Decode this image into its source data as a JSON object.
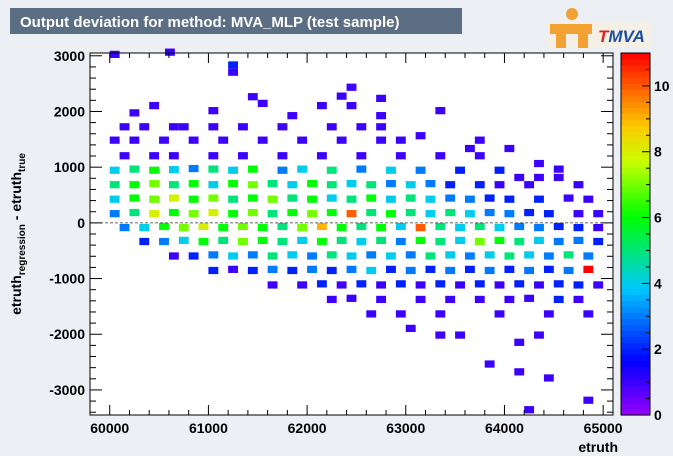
{
  "header": {
    "title": "Output deviation for method: MVA_MLP (test sample)",
    "logo_text": "MVA",
    "logo_prefix": "T"
  },
  "colors": {
    "canvas_bg": "#ecf0f5",
    "title_bar": "#5c6e84",
    "title_text": "#ffffff",
    "logo_bg": "#f5f0e6",
    "logo_orange": "#f2a233",
    "logo_text": "#1d4fa0",
    "logo_t": "#e0201b"
  },
  "chart_data": {
    "type": "heatmap",
    "title": "Output deviation for method: MVA_MLP (test sample)",
    "xlabel": "etruth",
    "ylabel": "etruth_regression - etruth_true",
    "ylabel_main": "etruth",
    "ylabel_sub1": "regression",
    "ylabel_mid": " - etruth",
    "ylabel_sub2": "true",
    "xlim": [
      59800,
      65100
    ],
    "ylim": [
      -3450,
      3050
    ],
    "x_ticks": [
      60000,
      61000,
      62000,
      63000,
      64000,
      65000
    ],
    "x_tick_labels": [
      "60000",
      "61000",
      "62000",
      "63000",
      "64000",
      "65000"
    ],
    "y_ticks": [
      3000,
      2000,
      1000,
      0,
      -1000,
      -2000,
      -3000
    ],
    "y_tick_labels": [
      "3000",
      "2000",
      "1000",
      "0",
      "-1000",
      "-2000",
      "-3000"
    ],
    "z_range": [
      0,
      11
    ],
    "z_ticks": [
      0,
      2,
      4,
      6,
      8,
      10
    ],
    "z_tick_labels": [
      "0",
      "2",
      "4",
      "6",
      "8",
      "10"
    ],
    "bin_width_x": 100,
    "bin_width_y": 130,
    "grid": false,
    "legend": "colorbar-right",
    "cells": [
      [
        60000,
        2960,
        1
      ],
      [
        60560,
        3000,
        1
      ],
      [
        61200,
        2770,
        2
      ],
      [
        61200,
        2640,
        1
      ],
      [
        62400,
        2370,
        1
      ],
      [
        61400,
        2200,
        1
      ],
      [
        62300,
        2210,
        1
      ],
      [
        62700,
        2170,
        1
      ],
      [
        60400,
        2040,
        1
      ],
      [
        61500,
        2080,
        1
      ],
      [
        62100,
        2040,
        1
      ],
      [
        62400,
        2040,
        1
      ],
      [
        60200,
        1910,
        1
      ],
      [
        61000,
        1950,
        1
      ],
      [
        61800,
        1860,
        1
      ],
      [
        62700,
        1860,
        1
      ],
      [
        63300,
        1950,
        1
      ],
      [
        60100,
        1660,
        1
      ],
      [
        60300,
        1660,
        1
      ],
      [
        60600,
        1660,
        1
      ],
      [
        60700,
        1660,
        1
      ],
      [
        61000,
        1660,
        1
      ],
      [
        61300,
        1660,
        1
      ],
      [
        61700,
        1660,
        1
      ],
      [
        62200,
        1660,
        1
      ],
      [
        62500,
        1660,
        1
      ],
      [
        62700,
        1660,
        1
      ],
      [
        63100,
        1500,
        1
      ],
      [
        63700,
        1420,
        1
      ],
      [
        63600,
        1270,
        1
      ],
      [
        64000,
        1270,
        1
      ],
      [
        60000,
        1420,
        1
      ],
      [
        60200,
        1420,
        1
      ],
      [
        60500,
        1420,
        1
      ],
      [
        60800,
        1420,
        1
      ],
      [
        61100,
        1420,
        1
      ],
      [
        61500,
        1420,
        1
      ],
      [
        61900,
        1420,
        1
      ],
      [
        62300,
        1420,
        1
      ],
      [
        62700,
        1420,
        1
      ],
      [
        62900,
        1420,
        1
      ],
      [
        60100,
        1140,
        1
      ],
      [
        60400,
        1140,
        1
      ],
      [
        60600,
        1140,
        1
      ],
      [
        61000,
        1140,
        1
      ],
      [
        61300,
        1140,
        1
      ],
      [
        61700,
        1140,
        1
      ],
      [
        62100,
        1140,
        1
      ],
      [
        62500,
        1140,
        1
      ],
      [
        62900,
        1140,
        1
      ],
      [
        63300,
        1140,
        1
      ],
      [
        63700,
        1140,
        1
      ],
      [
        64300,
        1000,
        1
      ],
      [
        64500,
        900,
        1
      ],
      [
        60000,
        880,
        4
      ],
      [
        60200,
        900,
        5
      ],
      [
        60400,
        880,
        6
      ],
      [
        60600,
        890,
        4
      ],
      [
        60800,
        910,
        3
      ],
      [
        61000,
        900,
        5
      ],
      [
        61200,
        880,
        4
      ],
      [
        61400,
        900,
        6
      ],
      [
        61700,
        880,
        3
      ],
      [
        61900,
        900,
        4
      ],
      [
        62200,
        880,
        5
      ],
      [
        62500,
        900,
        3
      ],
      [
        62800,
        880,
        4
      ],
      [
        63100,
        880,
        3
      ],
      [
        63500,
        880,
        2
      ],
      [
        63900,
        880,
        2
      ],
      [
        64100,
        750,
        1
      ],
      [
        64300,
        750,
        1
      ],
      [
        64500,
        750,
        1
      ],
      [
        64700,
        620,
        1
      ],
      [
        60000,
        620,
        5
      ],
      [
        60200,
        620,
        6
      ],
      [
        60400,
        640,
        7
      ],
      [
        60600,
        620,
        5
      ],
      [
        60800,
        640,
        6
      ],
      [
        61000,
        620,
        4
      ],
      [
        61200,
        640,
        6
      ],
      [
        61400,
        620,
        7
      ],
      [
        61600,
        640,
        5
      ],
      [
        61800,
        620,
        4
      ],
      [
        62000,
        640,
        6
      ],
      [
        62200,
        620,
        5
      ],
      [
        62400,
        640,
        4
      ],
      [
        62600,
        620,
        5
      ],
      [
        62800,
        640,
        3
      ],
      [
        63000,
        620,
        4
      ],
      [
        63200,
        640,
        3
      ],
      [
        63400,
        620,
        2
      ],
      [
        63700,
        620,
        2
      ],
      [
        63900,
        620,
        1
      ],
      [
        64200,
        620,
        1
      ],
      [
        60000,
        360,
        4
      ],
      [
        60200,
        380,
        6
      ],
      [
        60400,
        360,
        7
      ],
      [
        60600,
        380,
        8
      ],
      [
        60800,
        360,
        6
      ],
      [
        61000,
        380,
        7
      ],
      [
        61200,
        360,
        5
      ],
      [
        61400,
        380,
        6
      ],
      [
        61600,
        360,
        7
      ],
      [
        61800,
        380,
        5
      ],
      [
        62000,
        360,
        6
      ],
      [
        62200,
        380,
        4
      ],
      [
        62400,
        360,
        5
      ],
      [
        62600,
        380,
        6
      ],
      [
        62800,
        360,
        4
      ],
      [
        63000,
        380,
        5
      ],
      [
        63200,
        360,
        4
      ],
      [
        63400,
        380,
        3
      ],
      [
        63600,
        360,
        3
      ],
      [
        63800,
        380,
        2
      ],
      [
        64000,
        360,
        2
      ],
      [
        64300,
        360,
        2
      ],
      [
        64600,
        380,
        1
      ],
      [
        64800,
        360,
        1
      ],
      [
        64900,
        100,
        1
      ],
      [
        60000,
        100,
        3
      ],
      [
        60200,
        120,
        5
      ],
      [
        60400,
        100,
        8
      ],
      [
        60600,
        120,
        6
      ],
      [
        60800,
        100,
        7
      ],
      [
        61000,
        120,
        8
      ],
      [
        61200,
        100,
        6
      ],
      [
        61400,
        120,
        7
      ],
      [
        61600,
        100,
        5
      ],
      [
        61800,
        120,
        6
      ],
      [
        62000,
        100,
        7
      ],
      [
        62200,
        120,
        6
      ],
      [
        62400,
        100,
        10
      ],
      [
        62600,
        120,
        5
      ],
      [
        62800,
        100,
        6
      ],
      [
        63000,
        120,
        5
      ],
      [
        63200,
        100,
        4
      ],
      [
        63400,
        120,
        5
      ],
      [
        63600,
        100,
        4
      ],
      [
        63800,
        120,
        3
      ],
      [
        64000,
        100,
        3
      ],
      [
        64200,
        120,
        2
      ],
      [
        64400,
        100,
        2
      ],
      [
        64700,
        100,
        1
      ],
      [
        60100,
        -150,
        3
      ],
      [
        60300,
        -150,
        4
      ],
      [
        60500,
        -130,
        6
      ],
      [
        60700,
        -150,
        7
      ],
      [
        60900,
        -130,
        8
      ],
      [
        61100,
        -150,
        6
      ],
      [
        61300,
        -130,
        7
      ],
      [
        61500,
        -150,
        6
      ],
      [
        61700,
        -130,
        5
      ],
      [
        61900,
        -150,
        7
      ],
      [
        62100,
        -130,
        9
      ],
      [
        62300,
        -150,
        6
      ],
      [
        62500,
        -130,
        5
      ],
      [
        62700,
        -150,
        6
      ],
      [
        62900,
        -130,
        4
      ],
      [
        63100,
        -150,
        10
      ],
      [
        63300,
        -130,
        5
      ],
      [
        63500,
        -150,
        4
      ],
      [
        63700,
        -130,
        5
      ],
      [
        63900,
        -150,
        4
      ],
      [
        64100,
        -130,
        3
      ],
      [
        64300,
        -150,
        3
      ],
      [
        64500,
        -130,
        2
      ],
      [
        64700,
        -150,
        2
      ],
      [
        64900,
        -150,
        1
      ],
      [
        60300,
        -400,
        2
      ],
      [
        60500,
        -400,
        3
      ],
      [
        60700,
        -380,
        4
      ],
      [
        60900,
        -400,
        6
      ],
      [
        61100,
        -380,
        5
      ],
      [
        61300,
        -400,
        7
      ],
      [
        61500,
        -380,
        6
      ],
      [
        61700,
        -400,
        5
      ],
      [
        61900,
        -380,
        4
      ],
      [
        62100,
        -400,
        6
      ],
      [
        62300,
        -380,
        5
      ],
      [
        62500,
        -400,
        4
      ],
      [
        62700,
        -380,
        5
      ],
      [
        62900,
        -400,
        3
      ],
      [
        63100,
        -380,
        6
      ],
      [
        63300,
        -400,
        5
      ],
      [
        63500,
        -380,
        4
      ],
      [
        63700,
        -400,
        7
      ],
      [
        63900,
        -380,
        6
      ],
      [
        64100,
        -400,
        5
      ],
      [
        64300,
        -380,
        4
      ],
      [
        64500,
        -400,
        3
      ],
      [
        64700,
        -380,
        3
      ],
      [
        64900,
        -400,
        2
      ],
      [
        60600,
        -660,
        1
      ],
      [
        60800,
        -660,
        2
      ],
      [
        61000,
        -640,
        3
      ],
      [
        61200,
        -660,
        4
      ],
      [
        61400,
        -640,
        3
      ],
      [
        61600,
        -660,
        5
      ],
      [
        61800,
        -640,
        4
      ],
      [
        62000,
        -660,
        3
      ],
      [
        62200,
        -640,
        5
      ],
      [
        62400,
        -660,
        4
      ],
      [
        62600,
        -640,
        3
      ],
      [
        62800,
        -660,
        4
      ],
      [
        63000,
        -640,
        3
      ],
      [
        63200,
        -660,
        5
      ],
      [
        63400,
        -640,
        4
      ],
      [
        63600,
        -660,
        3
      ],
      [
        63800,
        -640,
        4
      ],
      [
        64000,
        -660,
        5
      ],
      [
        64200,
        -640,
        4
      ],
      [
        64400,
        -660,
        3
      ],
      [
        64600,
        -640,
        5
      ],
      [
        64800,
        -660,
        3
      ],
      [
        61000,
        -920,
        2
      ],
      [
        61200,
        -900,
        1
      ],
      [
        61400,
        -920,
        2
      ],
      [
        61600,
        -900,
        3
      ],
      [
        61800,
        -920,
        2
      ],
      [
        62000,
        -900,
        3
      ],
      [
        62200,
        -920,
        2
      ],
      [
        62400,
        -900,
        3
      ],
      [
        62600,
        -920,
        4
      ],
      [
        62800,
        -900,
        2
      ],
      [
        63000,
        -920,
        3
      ],
      [
        63200,
        -900,
        2
      ],
      [
        63400,
        -920,
        3
      ],
      [
        63600,
        -900,
        2
      ],
      [
        63800,
        -920,
        3
      ],
      [
        64000,
        -900,
        2
      ],
      [
        64200,
        -920,
        3
      ],
      [
        64400,
        -900,
        2
      ],
      [
        64600,
        -920,
        3
      ],
      [
        64800,
        -900,
        11
      ],
      [
        61600,
        -1180,
        1
      ],
      [
        61900,
        -1180,
        1
      ],
      [
        62100,
        -1160,
        2
      ],
      [
        62300,
        -1180,
        1
      ],
      [
        62500,
        -1160,
        2
      ],
      [
        62700,
        -1180,
        1
      ],
      [
        62900,
        -1160,
        2
      ],
      [
        63100,
        -1180,
        1
      ],
      [
        63300,
        -1160,
        2
      ],
      [
        63500,
        -1180,
        1
      ],
      [
        63700,
        -1160,
        2
      ],
      [
        63900,
        -1180,
        1
      ],
      [
        64100,
        -1160,
        2
      ],
      [
        64300,
        -1180,
        1
      ],
      [
        64500,
        -1160,
        2
      ],
      [
        64700,
        -1180,
        2
      ],
      [
        64900,
        -1180,
        1
      ],
      [
        62200,
        -1440,
        1
      ],
      [
        62400,
        -1420,
        1
      ],
      [
        62700,
        -1440,
        1
      ],
      [
        63100,
        -1440,
        1
      ],
      [
        63400,
        -1440,
        1
      ],
      [
        63700,
        -1440,
        1
      ],
      [
        64000,
        -1440,
        1
      ],
      [
        64200,
        -1420,
        1
      ],
      [
        64500,
        -1440,
        2
      ],
      [
        64700,
        -1440,
        1
      ],
      [
        62600,
        -1700,
        1
      ],
      [
        62900,
        -1700,
        1
      ],
      [
        63300,
        -1700,
        1
      ],
      [
        63900,
        -1700,
        1
      ],
      [
        64400,
        -1700,
        1
      ],
      [
        64800,
        -1700,
        1
      ],
      [
        63000,
        -1960,
        1
      ],
      [
        63500,
        -2080,
        1
      ],
      [
        64300,
        -2080,
        1
      ],
      [
        63300,
        -2080,
        1
      ],
      [
        64100,
        -2210,
        1
      ],
      [
        63800,
        -2600,
        1
      ],
      [
        64100,
        -2740,
        1
      ],
      [
        64400,
        -2850,
        1
      ],
      [
        64800,
        -3250,
        1
      ],
      [
        64200,
        -3420,
        1
      ]
    ]
  }
}
